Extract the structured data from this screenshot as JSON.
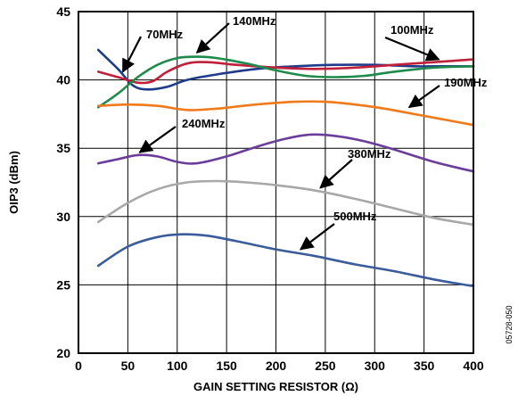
{
  "chart_data": {
    "type": "line",
    "xlabel": "GAIN SETTING RESISTOR (Ω)",
    "ylabel": "OIP3 (dBm)",
    "xlim": [
      0,
      400
    ],
    "ylim": [
      20,
      45
    ],
    "xticks": [
      0,
      50,
      100,
      150,
      200,
      250,
      300,
      350,
      400
    ],
    "yticks": [
      20,
      25,
      30,
      35,
      40,
      45
    ],
    "grid": true,
    "legend": "none (callout labels with arrows)",
    "figure_code": "05728-050",
    "series": [
      {
        "name": "70MHz",
        "color": "#1f3c8a",
        "x": [
          20,
          40,
          55,
          70,
          90,
          110,
          140,
          180,
          220,
          260,
          300,
          340,
          370,
          400
        ],
        "y": [
          42.2,
          40.8,
          39.6,
          39.3,
          39.5,
          40.0,
          40.4,
          40.8,
          41.0,
          41.1,
          41.1,
          41.0,
          41.0,
          41.0
        ]
      },
      {
        "name": "140MHz",
        "color": "#c0203a",
        "x": [
          20,
          40,
          60,
          75,
          90,
          110,
          130,
          160,
          200,
          240,
          280,
          320,
          360,
          400
        ],
        "y": [
          40.6,
          40.2,
          39.8,
          39.9,
          40.6,
          41.2,
          41.3,
          41.1,
          40.9,
          40.8,
          40.9,
          41.1,
          41.3,
          41.5
        ]
      },
      {
        "name": "100MHz",
        "color": "#1f8a4c",
        "x": [
          20,
          40,
          60,
          80,
          100,
          120,
          140,
          170,
          200,
          230,
          260,
          290,
          320,
          360,
          400
        ],
        "y": [
          38.0,
          39.0,
          40.2,
          41.1,
          41.6,
          41.7,
          41.6,
          41.2,
          40.7,
          40.3,
          40.2,
          40.3,
          40.6,
          40.9,
          41.0
        ]
      },
      {
        "name": "190MHz",
        "color": "#f07a1a",
        "x": [
          20,
          50,
          80,
          110,
          140,
          180,
          220,
          250,
          280,
          310,
          340,
          370,
          400
        ],
        "y": [
          38.1,
          38.2,
          38.1,
          37.8,
          37.9,
          38.2,
          38.4,
          38.4,
          38.2,
          37.9,
          37.5,
          37.1,
          36.7
        ]
      },
      {
        "name": "240MHz",
        "color": "#6a3d9a",
        "x": [
          20,
          40,
          60,
          80,
          100,
          120,
          150,
          180,
          210,
          235,
          260,
          290,
          320,
          360,
          400
        ],
        "y": [
          33.9,
          34.2,
          34.5,
          34.4,
          34.0,
          33.9,
          34.4,
          35.1,
          35.7,
          36.0,
          35.9,
          35.5,
          34.9,
          34.0,
          33.3
        ]
      },
      {
        "name": "380MHz",
        "color": "#a8a8a8",
        "x": [
          20,
          50,
          80,
          110,
          140,
          170,
          200,
          240,
          280,
          320,
          360,
          400
        ],
        "y": [
          29.6,
          31.0,
          32.0,
          32.5,
          32.6,
          32.5,
          32.3,
          31.9,
          31.3,
          30.6,
          29.9,
          29.4
        ]
      },
      {
        "name": "500MHz",
        "color": "#3a5c9a",
        "x": [
          20,
          50,
          80,
          105,
          130,
          160,
          200,
          240,
          280,
          320,
          360,
          400
        ],
        "y": [
          26.4,
          27.8,
          28.5,
          28.7,
          28.6,
          28.2,
          27.6,
          27.1,
          26.5,
          26.0,
          25.4,
          24.9
        ]
      }
    ],
    "annotations": [
      {
        "label": "70MHz",
        "series": "70MHz",
        "x": 45,
        "y": 40.6
      },
      {
        "label": "140MHz",
        "series": "140MHz",
        "x": 120,
        "y": 42.0
      },
      {
        "label": "100MHz",
        "series": "100MHz",
        "x": 365,
        "y": 41.5
      },
      {
        "label": "190MHz",
        "series": "190MHz",
        "x": 335,
        "y": 38.0
      },
      {
        "label": "240MHz",
        "series": "240MHz",
        "x": 62,
        "y": 34.7
      },
      {
        "label": "380MHz",
        "series": "380MHz",
        "x": 245,
        "y": 32.1
      },
      {
        "label": "500MHz",
        "series": "500MHz",
        "x": 225,
        "y": 27.6
      }
    ]
  }
}
